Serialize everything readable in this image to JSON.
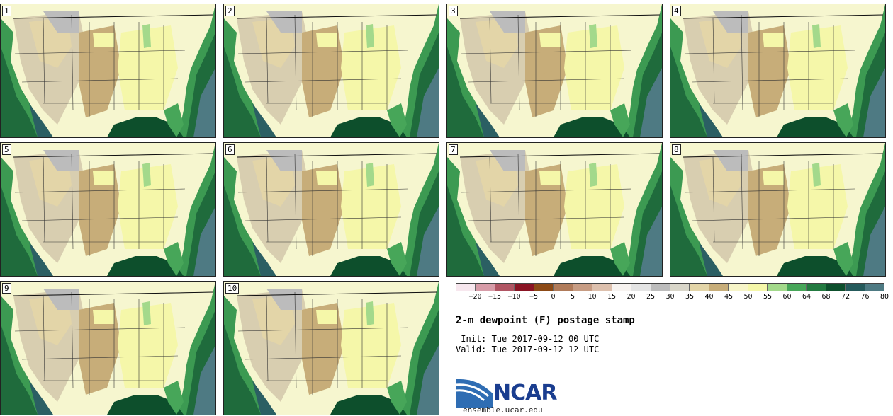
{
  "panels": [
    {
      "label": "1"
    },
    {
      "label": "2"
    },
    {
      "label": "3"
    },
    {
      "label": "4"
    },
    {
      "label": "5"
    },
    {
      "label": "6"
    },
    {
      "label": "7"
    },
    {
      "label": "8"
    },
    {
      "label": "9"
    },
    {
      "label": "10"
    }
  ],
  "colorbar": {
    "ticks": [
      "−20",
      "−15",
      "−10",
      "−5",
      "0",
      "5",
      "10",
      "15",
      "20",
      "25",
      "30",
      "35",
      "40",
      "45",
      "50",
      "55",
      "60",
      "64",
      "68",
      "72",
      "76",
      "80"
    ],
    "colors": [
      "#f7e7ee",
      "#d79ca8",
      "#b05563",
      "#8a1424",
      "#8c4a16",
      "#b07b5a",
      "#c79c83",
      "#ddc0ad",
      "#f7f3f0",
      "#e4e4e4",
      "#bcbcbc",
      "#d9d6c9",
      "#e3d5a8",
      "#c7ad79",
      "#f7f5c8",
      "#f5f7a9",
      "#a3d98b",
      "#47a659",
      "#237a40",
      "#0d4f2c",
      "#255a5b",
      "#4e7a83"
    ]
  },
  "title": "2-m dewpoint (F) postage stamp",
  "init": " Init: Tue 2017-09-12 00 UTC",
  "valid": "Valid: Tue 2017-09-12 12 UTC",
  "logo_text": "NCAR",
  "url": "ensemble.ucar.edu"
}
